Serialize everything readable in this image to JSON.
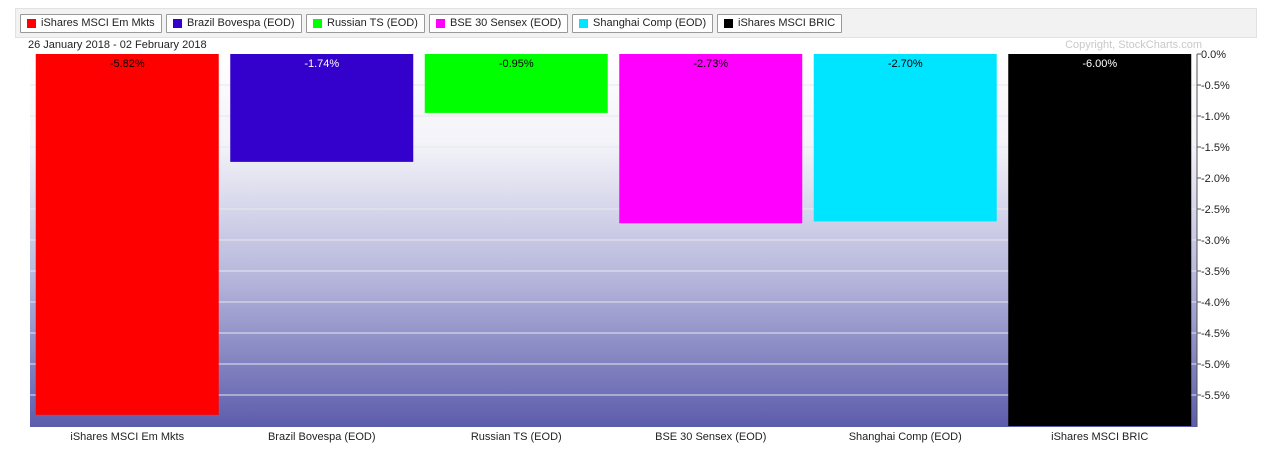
{
  "header": {
    "date_range": "26 January 2018 - 02 February 2018",
    "copyright": "Copyright, StockCharts.com"
  },
  "legend": [
    {
      "label": "iShares MSCI Em Mkts",
      "color": "#ff0000"
    },
    {
      "label": "Brazil Bovespa (EOD)",
      "color": "#3300cc"
    },
    {
      "label": "Russian TS (EOD)",
      "color": "#00ff00"
    },
    {
      "label": "BSE 30 Sensex (EOD)",
      "color": "#ff00ff"
    },
    {
      "label": "Shanghai Comp (EOD)",
      "color": "#00e5ff"
    },
    {
      "label": "iShares MSCI BRIC",
      "color": "#000000"
    }
  ],
  "chart_data": {
    "type": "bar",
    "categories": [
      "iShares MSCI Em Mkts",
      "Brazil Bovespa (EOD)",
      "Russian TS (EOD)",
      "BSE 30 Sensex (EOD)",
      "Shanghai Comp (EOD)",
      "iShares MSCI BRIC"
    ],
    "values": [
      -5.82,
      -1.74,
      -0.95,
      -2.73,
      -2.7,
      -6.0
    ],
    "value_labels": [
      "-5.82%",
      "-1.74%",
      "-0.95%",
      "-2.73%",
      "-2.70%",
      "-6.00%"
    ],
    "label_colors": [
      "#000000",
      "#ffffff",
      "#000000",
      "#000000",
      "#000000",
      "#ffffff"
    ],
    "colors": [
      "#ff0000",
      "#3300cc",
      "#00ff00",
      "#ff00ff",
      "#00e5ff",
      "#000000"
    ],
    "y_ticks": [
      0,
      -0.5,
      -1.0,
      -1.5,
      -2.0,
      -2.5,
      -3.0,
      -3.5,
      -4.0,
      -4.5,
      -5.0,
      -5.5
    ],
    "y_tick_labels": [
      "0.0%",
      "-0.5%",
      "-1.0%",
      "-1.5%",
      "-2.0%",
      "-2.5%",
      "-3.0%",
      "-3.5%",
      "-4.0%",
      "-4.5%",
      "-5.0%",
      "-5.5%"
    ],
    "ylim": [
      -6.0,
      0
    ],
    "axis_position": "right",
    "grid": true,
    "legend_position": "top",
    "background": "gradient white to blue-violet"
  }
}
